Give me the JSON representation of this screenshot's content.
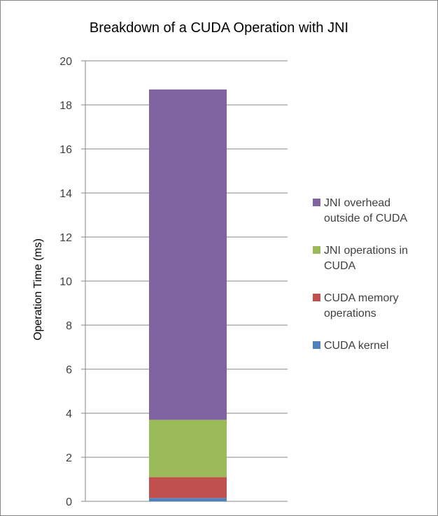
{
  "chart_data": {
    "type": "bar",
    "stacked": true,
    "title": "Breakdown of a CUDA Operation with JNI",
    "xlabel": "",
    "ylabel": "Operation Time (ms)",
    "ylim": [
      0,
      20
    ],
    "yticks": [
      0,
      2,
      4,
      6,
      8,
      10,
      12,
      14,
      16,
      18,
      20
    ],
    "categories": [
      ""
    ],
    "grid": true,
    "legend_position": "right",
    "series": [
      {
        "name": "CUDA kernel",
        "values": [
          0.15
        ],
        "color": "#4F81BD",
        "legend_lines": [
          "CUDA kernel"
        ]
      },
      {
        "name": "CUDA memory operations",
        "values": [
          0.95
        ],
        "color": "#C0504D",
        "legend_lines": [
          "CUDA memory",
          "operations"
        ]
      },
      {
        "name": "JNI operations in CUDA",
        "values": [
          2.6
        ],
        "color": "#9BBB59",
        "legend_lines": [
          "JNI operations in",
          "CUDA"
        ]
      },
      {
        "name": "JNI overhead outside of CUDA",
        "values": [
          15.0
        ],
        "color": "#8064A2",
        "legend_lines": [
          "JNI overhead",
          "outside of CUDA"
        ]
      }
    ]
  }
}
